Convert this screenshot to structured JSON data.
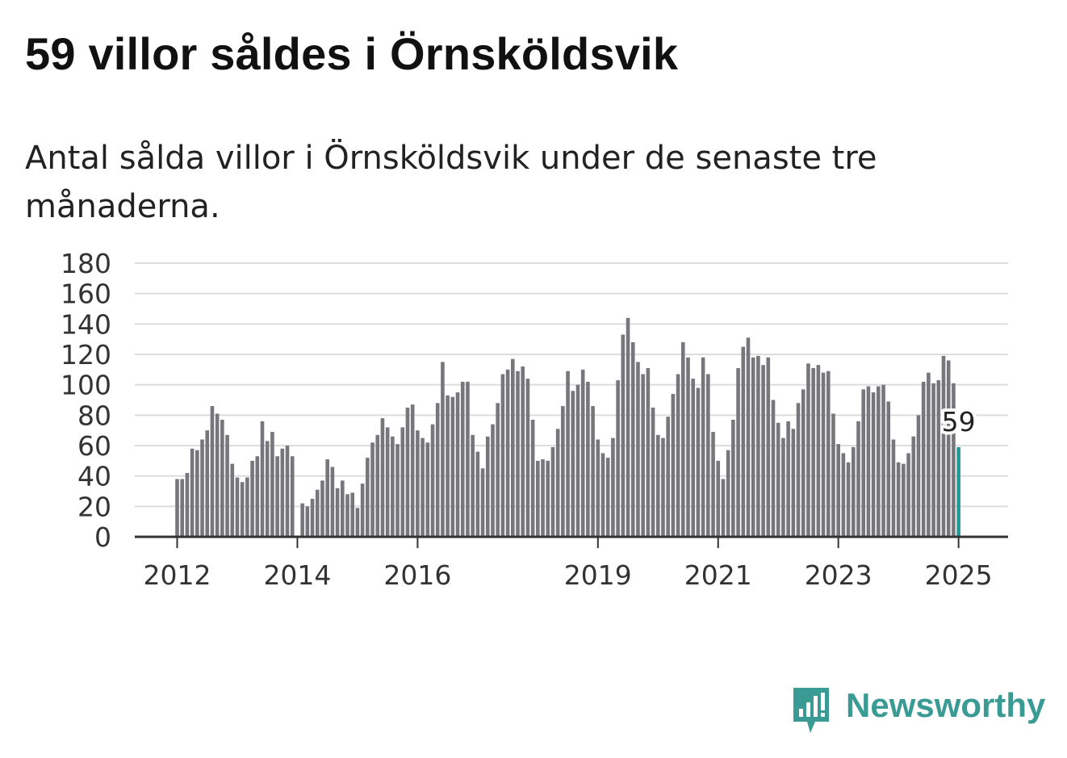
{
  "header": {
    "title": "59 villor såldes i Örnsköldsvik",
    "subtitle": "Antal sålda villor i Örnsköldsvik under de senaste tre månaderna."
  },
  "brand": {
    "name": "Newsworthy",
    "color": "#3a9b94"
  },
  "colors": {
    "bar": "#76767c",
    "highlight": "#1f9b95",
    "grid": "#dcdcdc",
    "axis": "#333333"
  },
  "chart_data": {
    "type": "bar",
    "ylim": [
      0,
      180
    ],
    "yticks": [
      "0",
      "20",
      "40",
      "60",
      "80",
      "100",
      "120",
      "140",
      "160",
      "180"
    ],
    "xticks": [
      {
        "label": "2012",
        "index": 0
      },
      {
        "label": "2014",
        "index": 24
      },
      {
        "label": "2016",
        "index": 48
      },
      {
        "label": "2019",
        "index": 84
      },
      {
        "label": "2021",
        "index": 108
      },
      {
        "label": "2023",
        "index": 132
      },
      {
        "label": "2025",
        "index": 156
      }
    ],
    "values": [
      38,
      38,
      42,
      58,
      57,
      64,
      70,
      86,
      81,
      77,
      67,
      48,
      39,
      36,
      39,
      50,
      53,
      76,
      63,
      69,
      53,
      58,
      60,
      53,
      null,
      22,
      20,
      25,
      31,
      37,
      51,
      46,
      32,
      37,
      28,
      29,
      19,
      35,
      52,
      62,
      67,
      78,
      72,
      66,
      61,
      72,
      85,
      87,
      70,
      65,
      62,
      74,
      88,
      115,
      93,
      92,
      95,
      102,
      102,
      67,
      56,
      45,
      66,
      74,
      88,
      107,
      110,
      117,
      109,
      112,
      104,
      77,
      50,
      51,
      50,
      59,
      71,
      86,
      109,
      96,
      100,
      110,
      102,
      86,
      64,
      55,
      52,
      65,
      103,
      133,
      144,
      128,
      115,
      107,
      111,
      85,
      67,
      65,
      79,
      94,
      107,
      128,
      118,
      104,
      98,
      118,
      107,
      69,
      50,
      38,
      57,
      77,
      111,
      125,
      131,
      118,
      119,
      113,
      118,
      90,
      75,
      65,
      76,
      71,
      88,
      97,
      114,
      111,
      113,
      108,
      109,
      81,
      61,
      55,
      49,
      59,
      76,
      97,
      99,
      95,
      99,
      100,
      89,
      64,
      49,
      48,
      55,
      66,
      80,
      102,
      108,
      101,
      103,
      119,
      116,
      101,
      59
    ],
    "highlight_index": 156,
    "highlight_label": "59"
  }
}
